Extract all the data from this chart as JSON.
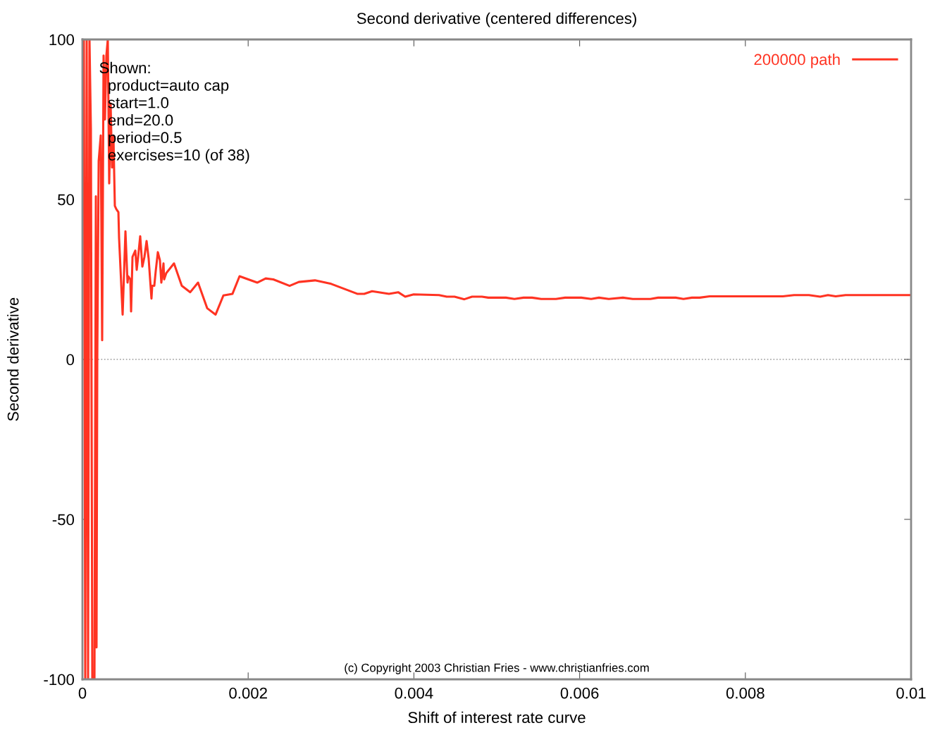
{
  "chart_data": {
    "type": "line",
    "title": "Second derivative (centered differences)",
    "xlabel": "Shift of interest rate curve",
    "ylabel": "Second derivative",
    "xlim": [
      0,
      0.01
    ],
    "ylim": [
      -100,
      100
    ],
    "xticks": [
      0,
      0.002,
      0.004,
      0.006,
      0.008,
      0.01
    ],
    "yticks": [
      -100,
      -50,
      0,
      50,
      100
    ],
    "grid": false,
    "legend": "top right",
    "line_style": "solid",
    "ref_lines": [
      {
        "axis": "y",
        "value": 0,
        "color": "#999999",
        "line_style": "dotted"
      }
    ],
    "annotations": [
      "Shown:\n  product=auto cap\n  start=1.0\n  end=20.0\n  period=0.5\n  exercises=10 (of 38)",
      "(c) Copyright 2003 Christian Fries - www.christianfries.com"
    ],
    "series": [
      {
        "name": "200000 path",
        "color": "#ff3322",
        "x": [
          1.7e-05,
          3.4e-05,
          5.1e-05,
          6.8e-05,
          8.5e-05,
          0.000102,
          0.000119,
          0.000145,
          0.000162,
          0.00017,
          0.000179,
          0.000196,
          0.000221,
          0.000238,
          0.000255,
          0.000272,
          0.000289,
          0.000306,
          0.000323,
          0.00034,
          0.000357,
          0.000374,
          0.000391,
          0.000408,
          0.000434,
          0.000442,
          0.000485,
          0.000519,
          0.000544,
          0.000553,
          0.000578,
          0.000587,
          0.000604,
          0.000638,
          0.000655,
          0.000672,
          0.000697,
          0.000723,
          0.000748,
          0.000774,
          0.000799,
          0.000833,
          0.000842,
          0.000867,
          0.000884,
          0.00091,
          0.000935,
          0.000952,
          0.000978,
          0.000986,
          0.001012,
          0.001105,
          0.001199,
          0.001301,
          0.001395,
          0.001505,
          0.001607,
          0.001701,
          0.001811,
          0.001896,
          0.002109,
          0.002211,
          0.002304,
          0.0025,
          0.002611,
          0.002806,
          0.003002,
          0.003316,
          0.003401,
          0.003495,
          0.003699,
          0.00381,
          0.003895,
          0.003997,
          0.004303,
          0.004396,
          0.00449,
          0.004609,
          0.004702,
          0.004821,
          0.004898,
          0.005111,
          0.005213,
          0.005323,
          0.005425,
          0.005536,
          0.005714,
          0.005825,
          0.00602,
          0.006139,
          0.006233,
          0.006352,
          0.006522,
          0.006641,
          0.006854,
          0.006947,
          0.00716,
          0.007253,
          0.007355,
          0.007449,
          0.007568,
          0.008452,
          0.008588,
          0.008767,
          0.008903,
          0.008997,
          0.00909,
          0.009209,
          0.01
        ],
        "values": [
          100,
          -100,
          100,
          -100,
          100,
          72,
          -100,
          -100,
          51,
          -90,
          0,
          62,
          70,
          6,
          95,
          75,
          95,
          100,
          55,
          80,
          60,
          70,
          48,
          47,
          46,
          38,
          14,
          40,
          24,
          26,
          25,
          15,
          32,
          34,
          28,
          32,
          38.5,
          29,
          32,
          37,
          31.5,
          19,
          23,
          23,
          27.5,
          33.5,
          31,
          24,
          30,
          25,
          27,
          30,
          23,
          21,
          24,
          16,
          14,
          20,
          20.5,
          26,
          24,
          25.3,
          25,
          23,
          24.2,
          24.7,
          23.6,
          20.5,
          20.5,
          21.3,
          20.5,
          21,
          19.6,
          20.3,
          20.1,
          19.6,
          19.6,
          18.8,
          19.6,
          19.6,
          19.3,
          19.3,
          18.9,
          19.3,
          19.3,
          18.9,
          18.9,
          19.3,
          19.3,
          18.9,
          19.3,
          18.9,
          19.3,
          18.9,
          18.9,
          19.3,
          19.3,
          18.9,
          19.3,
          19.3,
          19.7,
          19.7,
          20.1,
          20.1,
          19.6,
          20.1,
          19.7,
          20.1,
          20.1
        ]
      }
    ]
  }
}
